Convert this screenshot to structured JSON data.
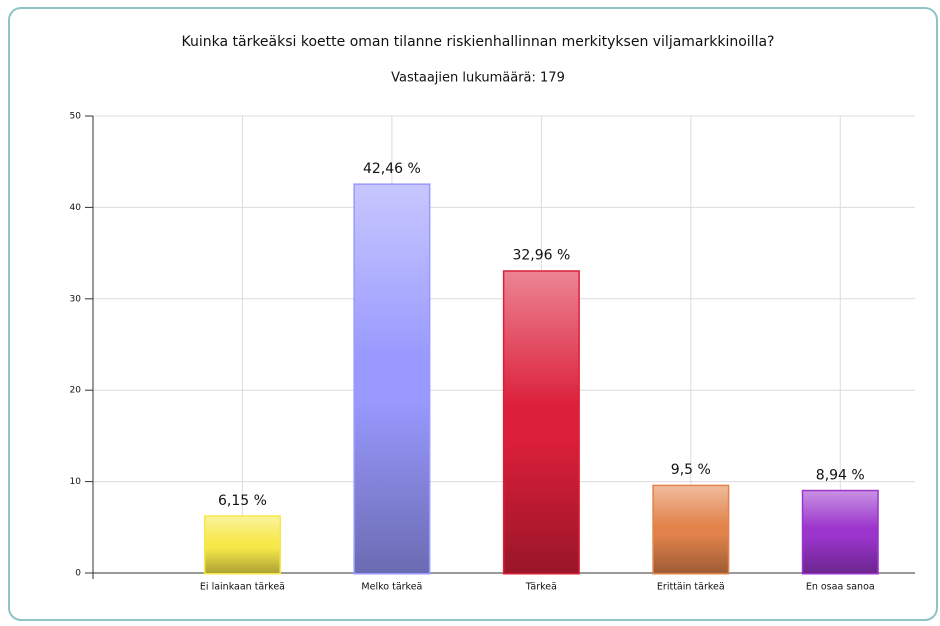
{
  "chart_data": {
    "type": "bar",
    "title": "Kuinka tärkeäksi koette oman tilanne riskienhallinnan merkityksen viljamarkkinoilla?",
    "subtitle": "Vastaajien lukumäärä: 179",
    "categories": [
      "Ei lainkaan tärkeä",
      "Melko tärkeä",
      "Tärkeä",
      "Erittäin tärkeä",
      "En osaa sanoa"
    ],
    "values": [
      6.15,
      42.46,
      32.96,
      9.5,
      8.94
    ],
    "value_labels": [
      "6,15 %",
      "42,46 %",
      "32,96 %",
      "9,5 %",
      "8,94 %"
    ],
    "colors": [
      "#f7e84a",
      "#9999ff",
      "#dc1f3a",
      "#e2834b",
      "#9b35cc"
    ],
    "ylim": [
      0,
      50
    ],
    "yticks": [
      0,
      10,
      20,
      30,
      40,
      50
    ],
    "grid": true
  }
}
